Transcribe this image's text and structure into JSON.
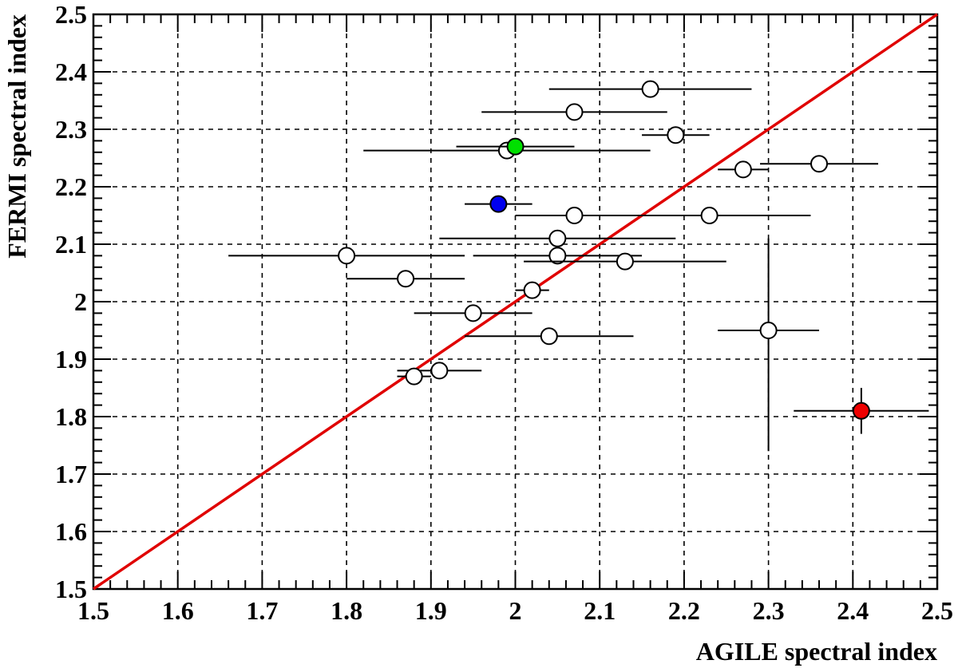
{
  "chart_data": {
    "type": "scatter",
    "title": "",
    "xlabel": "AGILE spectral index",
    "ylabel": "FERMI spectral index",
    "xlim": [
      1.5,
      2.5
    ],
    "ylim": [
      1.5,
      2.5
    ],
    "grid": true,
    "x_ticks": [
      1.5,
      1.6,
      1.7,
      1.8,
      1.9,
      2.0,
      2.1,
      2.2,
      2.3,
      2.4,
      2.5
    ],
    "y_ticks": [
      1.5,
      1.6,
      1.7,
      1.8,
      1.9,
      2.0,
      2.1,
      2.2,
      2.3,
      2.4,
      2.5
    ],
    "x_tick_labels": [
      "1.5",
      "1.6",
      "1.7",
      "1.8",
      "1.9",
      "2",
      "2.1",
      "2.2",
      "2.3",
      "2.4",
      "2.5"
    ],
    "y_tick_labels": [
      "1.5",
      "1.6",
      "1.7",
      "1.8",
      "1.9",
      "2",
      "2.1",
      "2.2",
      "2.3",
      "2.4",
      "2.5"
    ],
    "reference_line": {
      "x": [
        1.5,
        2.5
      ],
      "y": [
        1.5,
        2.5
      ],
      "color": "#e00000"
    },
    "points": [
      {
        "x": 2.16,
        "y": 2.37,
        "xerr": [
          0.12,
          0.12
        ],
        "yerr": [
          0,
          0
        ],
        "fill": "#ffffff"
      },
      {
        "x": 2.07,
        "y": 2.33,
        "xerr": [
          0.11,
          0.11
        ],
        "yerr": [
          0,
          0
        ],
        "fill": "#ffffff"
      },
      {
        "x": 2.19,
        "y": 2.29,
        "xerr": [
          0.04,
          0.04
        ],
        "yerr": [
          0,
          0
        ],
        "fill": "#ffffff"
      },
      {
        "x": 1.99,
        "y": 2.263,
        "xerr": [
          0.17,
          0.17
        ],
        "yerr": [
          0,
          0
        ],
        "fill": "#ffffff"
      },
      {
        "x": 2.0,
        "y": 2.27,
        "xerr": [
          0.07,
          0.07
        ],
        "yerr": [
          0,
          0
        ],
        "fill": "#00e000"
      },
      {
        "x": 2.36,
        "y": 2.24,
        "xerr": [
          0.07,
          0.07
        ],
        "yerr": [
          0,
          0
        ],
        "fill": "#ffffff"
      },
      {
        "x": 2.27,
        "y": 2.23,
        "xerr": [
          0.03,
          0.03
        ],
        "yerr": [
          0,
          0
        ],
        "fill": "#ffffff"
      },
      {
        "x": 1.98,
        "y": 2.17,
        "xerr": [
          0.04,
          0.04
        ],
        "yerr": [
          0,
          0
        ],
        "fill": "#0000ee"
      },
      {
        "x": 2.07,
        "y": 2.15,
        "xerr": [
          0.07,
          0.07
        ],
        "yerr": [
          0,
          0
        ],
        "fill": "#ffffff"
      },
      {
        "x": 2.23,
        "y": 2.15,
        "xerr": [
          0.12,
          0.12
        ],
        "yerr": [
          0,
          0
        ],
        "fill": "#ffffff"
      },
      {
        "x": 2.05,
        "y": 2.11,
        "xerr": [
          0.14,
          0.14
        ],
        "yerr": [
          0,
          0
        ],
        "fill": "#ffffff"
      },
      {
        "x": 1.8,
        "y": 2.08,
        "xerr": [
          0.14,
          0.14
        ],
        "yerr": [
          0,
          0
        ],
        "fill": "#ffffff"
      },
      {
        "x": 2.05,
        "y": 2.08,
        "xerr": [
          0.1,
          0.1
        ],
        "yerr": [
          0,
          0
        ],
        "fill": "#ffffff"
      },
      {
        "x": 2.13,
        "y": 2.07,
        "xerr": [
          0.12,
          0.12
        ],
        "yerr": [
          0,
          0
        ],
        "fill": "#ffffff"
      },
      {
        "x": 1.87,
        "y": 2.04,
        "xerr": [
          0.07,
          0.07
        ],
        "yerr": [
          0,
          0
        ],
        "fill": "#ffffff"
      },
      {
        "x": 2.02,
        "y": 2.02,
        "xerr": [
          0.02,
          0.02
        ],
        "yerr": [
          0,
          0
        ],
        "fill": "#ffffff"
      },
      {
        "x": 1.95,
        "y": 1.98,
        "xerr": [
          0.07,
          0.07
        ],
        "yerr": [
          0,
          0
        ],
        "fill": "#ffffff"
      },
      {
        "x": 2.04,
        "y": 1.94,
        "xerr": [
          0.1,
          0.1
        ],
        "yerr": [
          0,
          0
        ],
        "fill": "#ffffff"
      },
      {
        "x": 2.3,
        "y": 1.95,
        "xerr": [
          0.06,
          0.06
        ],
        "yerr": [
          0.21,
          0.16
        ],
        "fill": "#ffffff"
      },
      {
        "x": 1.91,
        "y": 1.88,
        "xerr": [
          0.05,
          0.05
        ],
        "yerr": [
          0,
          0
        ],
        "fill": "#ffffff"
      },
      {
        "x": 1.88,
        "y": 1.87,
        "xerr": [
          0.02,
          0.02
        ],
        "yerr": [
          0,
          0
        ],
        "fill": "#ffffff"
      },
      {
        "x": 2.41,
        "y": 1.81,
        "xerr": [
          0.08,
          0.08
        ],
        "yerr": [
          0.04,
          0.04
        ],
        "fill": "#ee0000"
      }
    ]
  }
}
